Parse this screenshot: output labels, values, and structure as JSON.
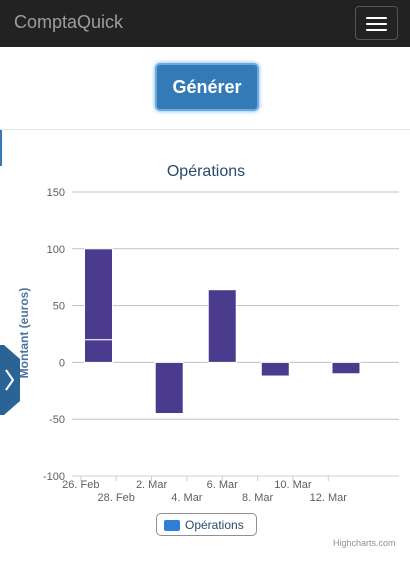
{
  "navbar": {
    "brand": "ComptaQuick",
    "menu_icon": "hamburger-menu-icon"
  },
  "toolbar": {
    "generate_label": "Générer"
  },
  "chart_data": {
    "type": "bar",
    "title": "Opérations",
    "ylabel": "Montant (euros)",
    "xlabel": "",
    "ylim": [
      -100,
      150
    ],
    "yticks": [
      150,
      100,
      50,
      0,
      -50,
      -100
    ],
    "xticks": [
      "26. Feb",
      "28. Feb",
      "2. Mar",
      "4. Mar",
      "6. Mar",
      "8. Mar",
      "10. Mar",
      "12. Mar"
    ],
    "xtick_dates": [
      "02-26",
      "02-28",
      "03-02",
      "03-04",
      "03-06",
      "03-08",
      "03-10",
      "03-12"
    ],
    "grid": true,
    "legend": "bottom-center",
    "color": "#4b3b8f",
    "series": [
      {
        "name": "Opérations",
        "points": [
          {
            "date": "02-27",
            "segments": [
              [
                0,
                20
              ],
              [
                20,
                100
              ]
            ]
          },
          {
            "date": "03-03",
            "segments": [
              [
                -45,
                0
              ]
            ]
          },
          {
            "date": "03-06",
            "segments": [
              [
                0,
                64
              ]
            ]
          },
          {
            "date": "03-09",
            "segments": [
              [
                -12,
                0
              ]
            ]
          },
          {
            "date": "03-13",
            "segments": [
              [
                -10,
                0
              ]
            ]
          }
        ]
      }
    ]
  },
  "credits": "Highcharts.com",
  "side_tab_icon": "chevron-right-icon"
}
